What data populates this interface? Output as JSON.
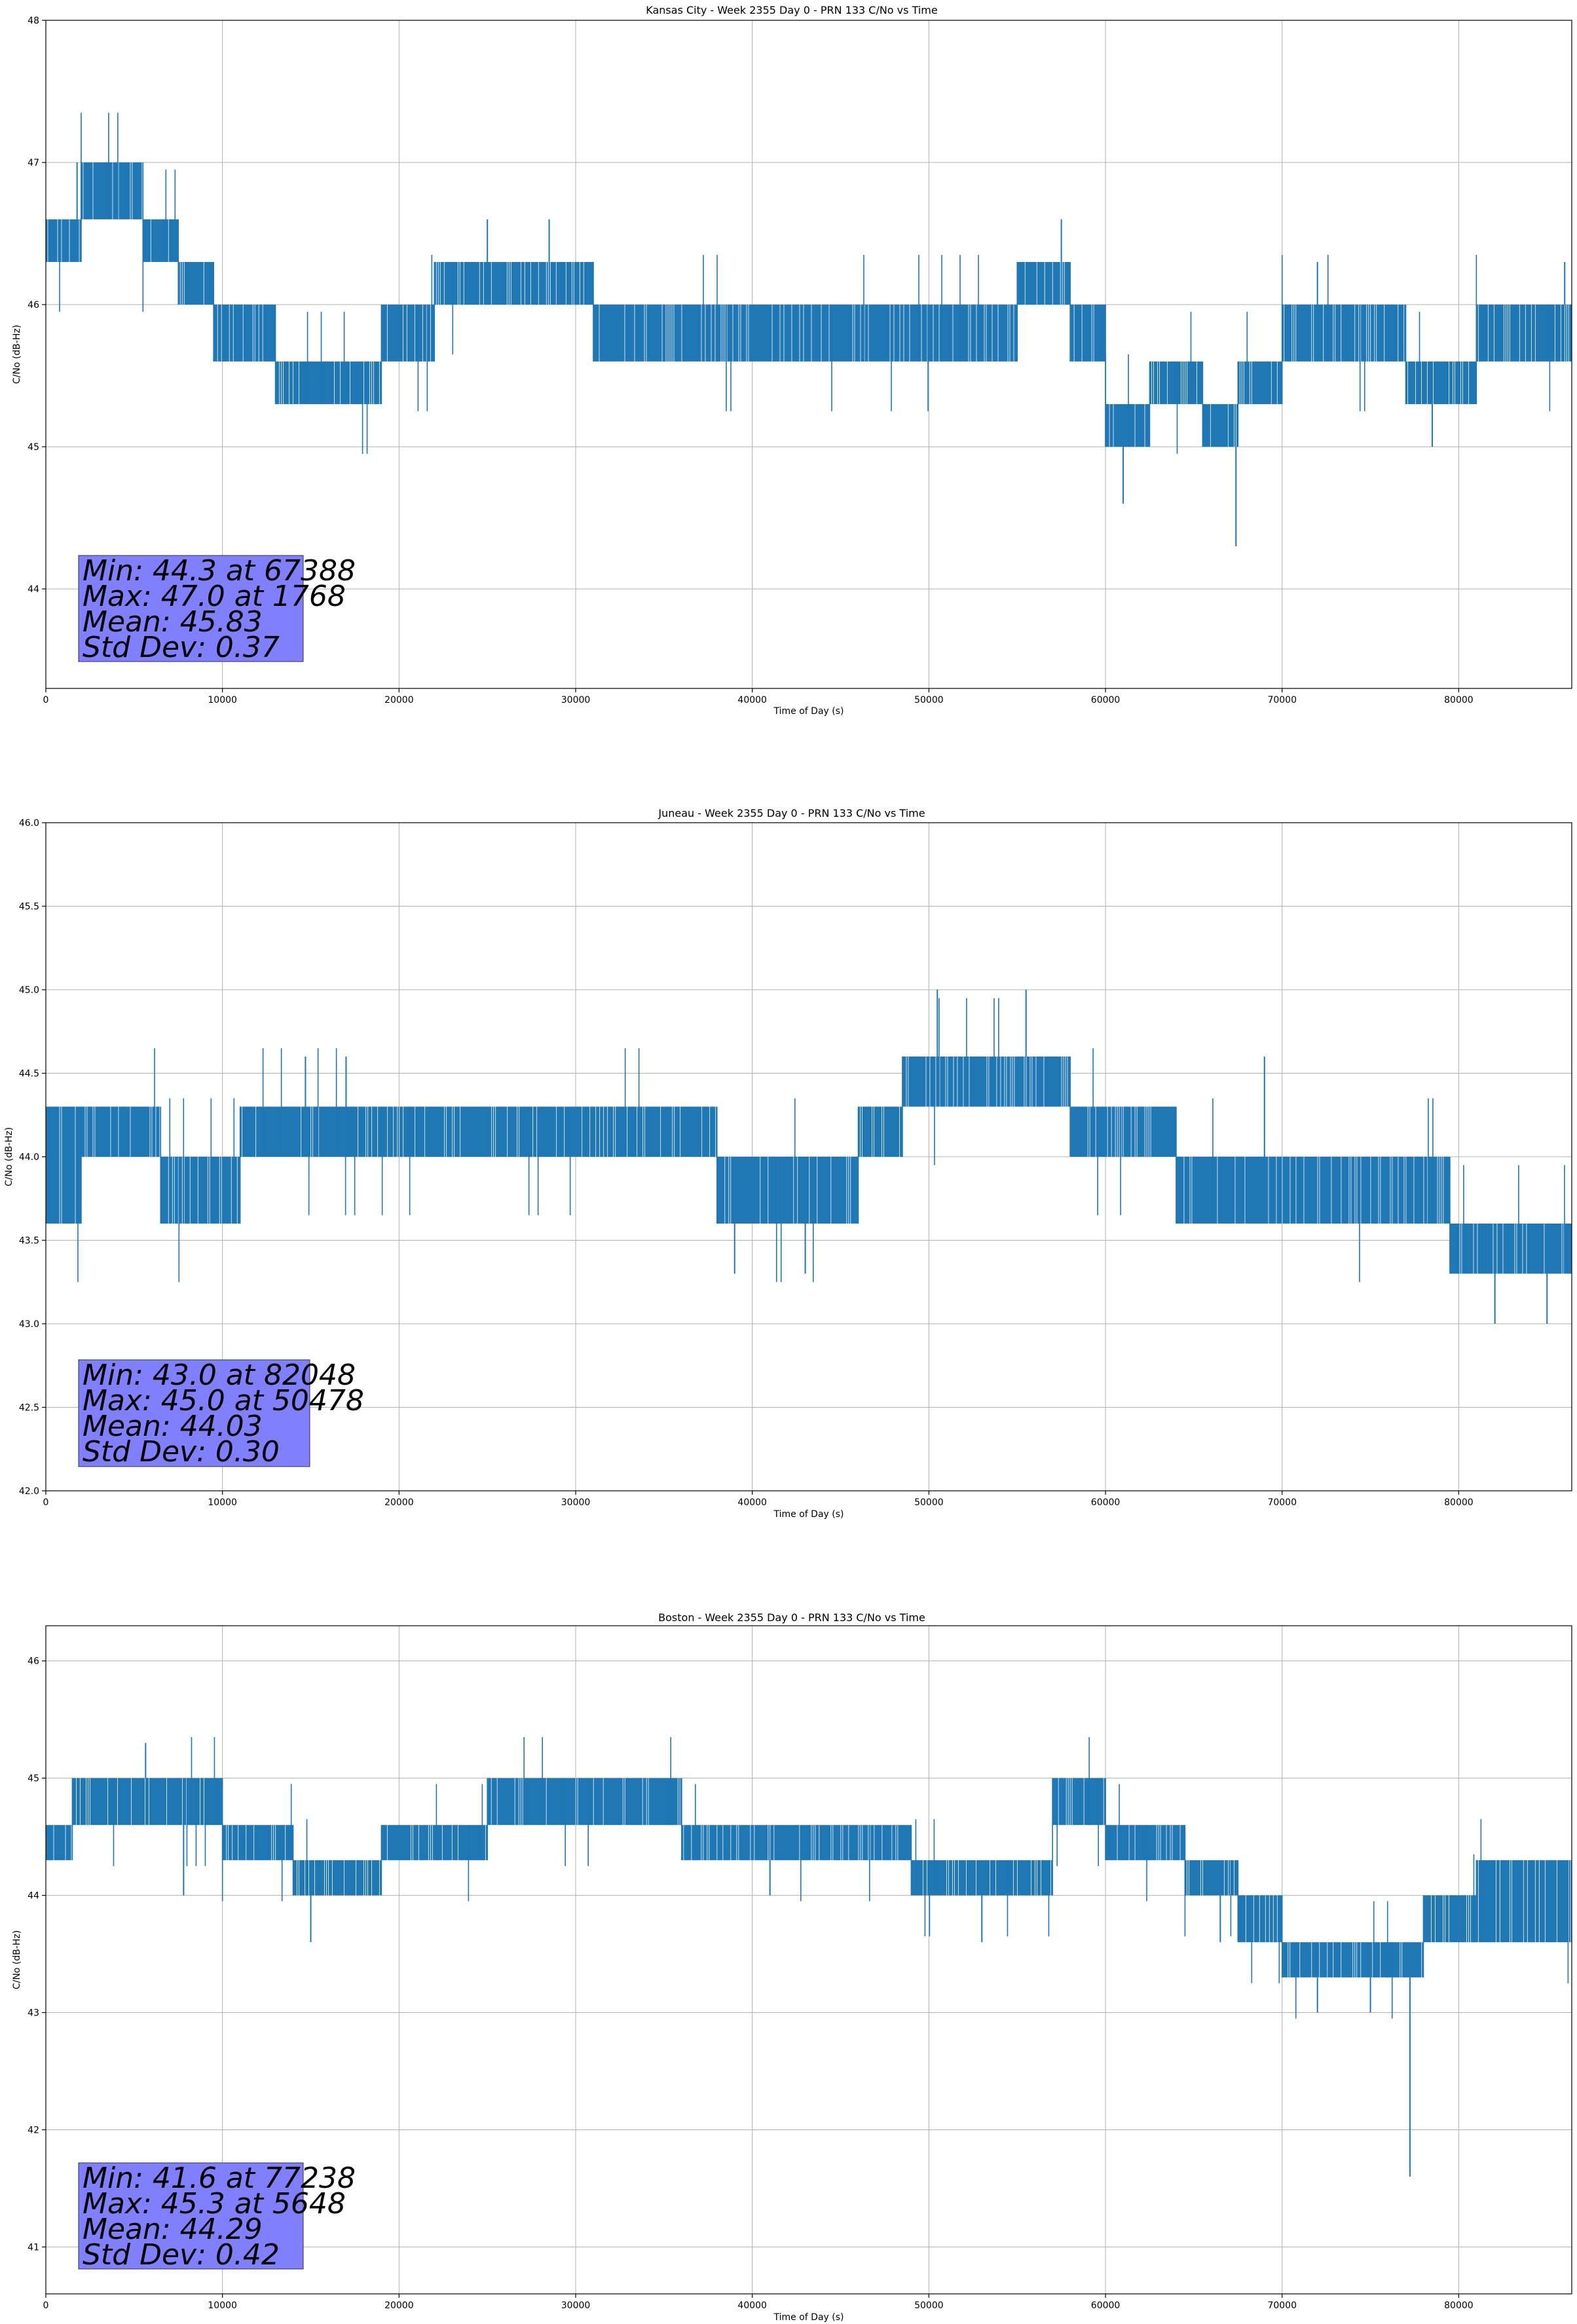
{
  "chart_data": [
    {
      "type": "line",
      "title": "Kansas City - Week 2355 Day 0 - PRN 133 C/No vs Time",
      "xlabel": "Time of Day (s)",
      "ylabel": "C/No (dB-Hz)",
      "xlim": [
        0,
        86400
      ],
      "ylim": [
        43.3,
        48.0
      ],
      "xticks": [
        0,
        10000,
        20000,
        30000,
        40000,
        50000,
        60000,
        70000,
        80000
      ],
      "yticks": [
        44,
        45,
        46,
        47,
        48
      ],
      "grid": true,
      "color": "#1f77b4",
      "stats": [
        "Min: 44.3 at 67388",
        "Max: 47.0 at 1768",
        "Mean: 45.83",
        "Std Dev: 0.37"
      ],
      "series": [
        {
          "name": "C/No",
          "bands": [
            [
              0,
              2000,
              46.3,
              46.6
            ],
            [
              2000,
              5500,
              46.6,
              47.0
            ],
            [
              5500,
              7500,
              46.3,
              46.6
            ],
            [
              7500,
              9500,
              46.0,
              46.3
            ],
            [
              9500,
              13000,
              45.6,
              46.0
            ],
            [
              13000,
              19000,
              45.3,
              45.6
            ],
            [
              19000,
              22000,
              45.6,
              46.0
            ],
            [
              22000,
              31000,
              46.0,
              46.3
            ],
            [
              31000,
              55000,
              45.6,
              46.0
            ],
            [
              55000,
              58000,
              46.0,
              46.3
            ],
            [
              58000,
              60000,
              45.6,
              46.0
            ],
            [
              60000,
              62500,
              45.0,
              45.3
            ],
            [
              62500,
              65500,
              45.3,
              45.6
            ],
            [
              65500,
              67500,
              45.0,
              45.3
            ],
            [
              67500,
              70000,
              45.3,
              45.6
            ],
            [
              70000,
              77000,
              45.6,
              46.0
            ],
            [
              77000,
              81000,
              45.3,
              45.6
            ],
            [
              81000,
              86400,
              45.6,
              46.0
            ]
          ],
          "spikes": [
            [
              1768,
              47.0
            ],
            [
              25000,
              46.6
            ],
            [
              28500,
              46.6
            ],
            [
              57500,
              46.6
            ],
            [
              61000,
              44.6
            ],
            [
              67388,
              44.3
            ],
            [
              72000,
              46.3
            ],
            [
              78500,
              45.0
            ],
            [
              86000,
              46.3
            ]
          ]
        }
      ]
    },
    {
      "type": "line",
      "title": "Juneau - Week 2355 Day 0 - PRN 133 C/No vs Time",
      "xlabel": "Time of Day (s)",
      "ylabel": "C/No (dB-Hz)",
      "xlim": [
        0,
        86400
      ],
      "ylim": [
        42.0,
        46.0
      ],
      "xticks": [
        0,
        10000,
        20000,
        30000,
        40000,
        50000,
        60000,
        70000,
        80000
      ],
      "yticks": [
        42.0,
        42.5,
        43.0,
        43.5,
        44.0,
        44.5,
        45.0,
        45.5,
        46.0
      ],
      "grid": true,
      "color": "#1f77b4",
      "stats": [
        "Min: 43.0 at 82048",
        "Max: 45.0 at 50478",
        "Mean: 44.03",
        "Std Dev: 0.30"
      ],
      "series": [
        {
          "name": "C/No",
          "bands": [
            [
              0,
              2000,
              43.6,
              44.3
            ],
            [
              2000,
              6500,
              44.0,
              44.3
            ],
            [
              6500,
              11000,
              43.6,
              44.0
            ],
            [
              11000,
              38000,
              44.0,
              44.3
            ],
            [
              38000,
              46000,
              43.6,
              44.0
            ],
            [
              46000,
              48500,
              44.0,
              44.3
            ],
            [
              48500,
              58000,
              44.3,
              44.6
            ],
            [
              58000,
              64000,
              44.0,
              44.3
            ],
            [
              64000,
              79500,
              43.6,
              44.0
            ],
            [
              79500,
              86400,
              43.3,
              43.6
            ]
          ],
          "spikes": [
            [
              14700,
              44.6
            ],
            [
              17000,
              44.6
            ],
            [
              39000,
              43.3
            ],
            [
              43000,
              43.3
            ],
            [
              50478,
              45.0
            ],
            [
              55500,
              45.0
            ],
            [
              69000,
              44.6
            ],
            [
              82048,
              43.0
            ],
            [
              85000,
              43.0
            ]
          ]
        }
      ]
    },
    {
      "type": "line",
      "title": "Boston - Week 2355 Day 0 - PRN 133 C/No vs Time",
      "xlabel": "Time of Day (s)",
      "ylabel": "C/No (dB-Hz)",
      "xlim": [
        0,
        86400
      ],
      "ylim": [
        40.6,
        46.3
      ],
      "xticks": [
        0,
        10000,
        20000,
        30000,
        40000,
        50000,
        60000,
        70000,
        80000
      ],
      "yticks": [
        41,
        42,
        43,
        44,
        45,
        46
      ],
      "grid": true,
      "color": "#1f77b4",
      "stats": [
        "Min: 41.6 at 77238",
        "Max: 45.3 at 5648",
        "Mean: 44.29",
        "Std Dev: 0.42"
      ],
      "series": [
        {
          "name": "C/No",
          "bands": [
            [
              0,
              1500,
              44.3,
              44.6
            ],
            [
              1500,
              10000,
              44.6,
              45.0
            ],
            [
              10000,
              14000,
              44.3,
              44.6
            ],
            [
              14000,
              19000,
              44.0,
              44.3
            ],
            [
              19000,
              25000,
              44.3,
              44.6
            ],
            [
              25000,
              36000,
              44.6,
              45.0
            ],
            [
              36000,
              49000,
              44.3,
              44.6
            ],
            [
              49000,
              57000,
              44.0,
              44.3
            ],
            [
              57000,
              60000,
              44.6,
              45.0
            ],
            [
              60000,
              64500,
              44.3,
              44.6
            ],
            [
              64500,
              67500,
              44.0,
              44.3
            ],
            [
              67500,
              70000,
              43.6,
              44.0
            ],
            [
              70000,
              78000,
              43.3,
              43.6
            ],
            [
              78000,
              81000,
              43.6,
              44.0
            ],
            [
              81000,
              86400,
              43.6,
              44.3
            ]
          ],
          "spikes": [
            [
              5648,
              45.3
            ],
            [
              7800,
              44.0
            ],
            [
              15000,
              43.6
            ],
            [
              41000,
              44.0
            ],
            [
              53000,
              43.6
            ],
            [
              66500,
              43.6
            ],
            [
              72000,
              43.0
            ],
            [
              75000,
              43.0
            ],
            [
              77238,
              41.6
            ]
          ]
        }
      ]
    }
  ]
}
